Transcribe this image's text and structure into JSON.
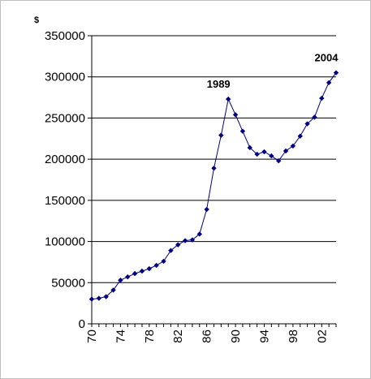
{
  "chart_data": {
    "type": "line",
    "title": "",
    "xlabel": "",
    "ylabel": "",
    "y_unit": "$",
    "ylim": [
      0,
      350000
    ],
    "yticks": [
      0,
      50000,
      100000,
      150000,
      200000,
      250000,
      300000,
      350000
    ],
    "ytick_labels": [
      "0",
      "50000",
      "100000",
      "150000",
      "200000",
      "250000",
      "300000",
      "350000"
    ],
    "xlim": [
      1970,
      2004
    ],
    "xticks": [
      1970,
      1974,
      1978,
      1982,
      1986,
      1990,
      1994,
      1998,
      2002
    ],
    "xtick_labels": [
      "70",
      "74",
      "78",
      "82",
      "86",
      "90",
      "94",
      "98",
      "02"
    ],
    "grid": "horizontal",
    "legend": "none",
    "series": [
      {
        "color": "#000080",
        "marker": "diamond",
        "x": [
          1970,
          1971,
          1972,
          1973,
          1974,
          1975,
          1976,
          1977,
          1978,
          1979,
          1980,
          1981,
          1982,
          1983,
          1984,
          1985,
          1986,
          1987,
          1988,
          1989,
          1990,
          1991,
          1992,
          1993,
          1994,
          1995,
          1996,
          1997,
          1998,
          1999,
          2000,
          2001,
          2002,
          2003,
          2004
        ],
        "values": [
          30000,
          31000,
          33000,
          41000,
          53000,
          57000,
          61000,
          64000,
          67000,
          71000,
          76000,
          89000,
          96000,
          101000,
          102000,
          109000,
          139000,
          189000,
          229000,
          273000,
          254000,
          234000,
          214000,
          206000,
          209000,
          204000,
          198000,
          210000,
          216000,
          228000,
          243000,
          251000,
          274000,
          293000,
          305000
        ]
      }
    ],
    "annotations": [
      {
        "text": "1989",
        "x": 1989,
        "y": 273000
      },
      {
        "text": "2004",
        "x": 2004,
        "y": 305000
      }
    ]
  }
}
